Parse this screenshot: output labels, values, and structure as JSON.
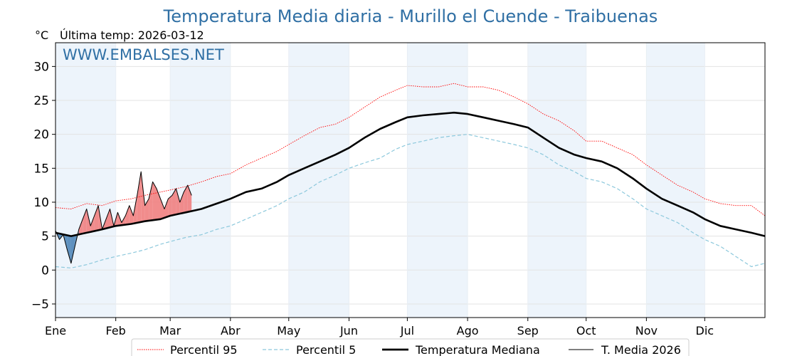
{
  "chart_data": {
    "type": "line",
    "title": "Temperatura Media diaria - Murillo el Cuende - Traibuenas",
    "unit_label": "°C",
    "last_temp_label": "Última temp: 2026-03-12",
    "watermark": "WWW.EMBALSES.NET",
    "ylim": [
      -7,
      33.5
    ],
    "yticks": [
      30,
      25,
      20,
      15,
      10,
      5,
      0,
      -5
    ],
    "ytick_labels": [
      "30",
      "25",
      "20",
      "15",
      "10",
      "5",
      "0",
      "−5"
    ],
    "xlim_days": [
      0,
      365
    ],
    "months": [
      {
        "label": "Ene",
        "start_day": 0
      },
      {
        "label": "Feb",
        "start_day": 31
      },
      {
        "label": "Mar",
        "start_day": 59
      },
      {
        "label": "Abr",
        "start_day": 90
      },
      {
        "label": "May",
        "start_day": 120
      },
      {
        "label": "Jun",
        "start_day": 151
      },
      {
        "label": "Jul",
        "start_day": 181
      },
      {
        "label": "Ago",
        "start_day": 212
      },
      {
        "label": "Sep",
        "start_day": 243
      },
      {
        "label": "Oct",
        "start_day": 273
      },
      {
        "label": "Nov",
        "start_day": 304
      },
      {
        "label": "Dic",
        "start_day": 334
      }
    ],
    "grid": true,
    "legend_position": "bottom",
    "colors": {
      "p95": "#ff0000",
      "p5": "#8cc8dc",
      "median": "#000000",
      "current": "#000000",
      "above_fill": "#f08080",
      "below_fill": "#4f86b8",
      "month_band": "#edf4fb",
      "title": "#2f6fa4"
    },
    "series": [
      {
        "name": "Percentil 95",
        "style": "dotted",
        "x": [
          0,
          8,
          16,
          24,
          31,
          39,
          46,
          54,
          59,
          67,
          75,
          83,
          90,
          98,
          106,
          114,
          120,
          128,
          136,
          144,
          151,
          159,
          167,
          175,
          181,
          189,
          197,
          205,
          212,
          220,
          228,
          236,
          243,
          251,
          259,
          267,
          273,
          281,
          289,
          297,
          304,
          312,
          320,
          328,
          334,
          342,
          350,
          358,
          365
        ],
        "y": [
          9.2,
          9.0,
          9.8,
          9.5,
          10.2,
          10.5,
          11.0,
          11.5,
          11.8,
          12.3,
          13.0,
          13.8,
          14.2,
          15.5,
          16.5,
          17.5,
          18.5,
          19.8,
          21.0,
          21.5,
          22.5,
          24.0,
          25.5,
          26.5,
          27.2,
          27.0,
          27.0,
          27.5,
          27.0,
          27.0,
          26.5,
          25.5,
          24.5,
          23.0,
          22.0,
          20.5,
          19.0,
          19.0,
          18.0,
          17.0,
          15.5,
          14.0,
          12.5,
          11.5,
          10.5,
          9.8,
          9.5,
          9.5,
          8.0
        ]
      },
      {
        "name": "Percentil 5",
        "style": "dashed",
        "x": [
          0,
          8,
          16,
          24,
          31,
          39,
          46,
          54,
          59,
          67,
          75,
          83,
          90,
          98,
          106,
          114,
          120,
          128,
          136,
          144,
          151,
          159,
          167,
          175,
          181,
          189,
          197,
          205,
          212,
          220,
          228,
          236,
          243,
          251,
          259,
          267,
          273,
          281,
          289,
          297,
          304,
          312,
          320,
          328,
          334,
          342,
          350,
          358,
          365
        ],
        "y": [
          0.5,
          0.3,
          0.8,
          1.5,
          2.0,
          2.5,
          3.0,
          3.8,
          4.2,
          4.8,
          5.2,
          6.0,
          6.5,
          7.5,
          8.5,
          9.5,
          10.5,
          11.5,
          13.0,
          14.0,
          15.0,
          15.8,
          16.5,
          17.8,
          18.5,
          19.0,
          19.5,
          19.8,
          20.0,
          19.5,
          19.0,
          18.5,
          18.0,
          17.0,
          15.5,
          14.5,
          13.5,
          13.0,
          12.0,
          10.5,
          9.0,
          8.0,
          7.0,
          5.5,
          4.5,
          3.5,
          2.0,
          0.5,
          1.0
        ]
      },
      {
        "name": "Temperatura Mediana",
        "style": "solid-thick",
        "x": [
          0,
          8,
          16,
          24,
          31,
          39,
          46,
          54,
          59,
          67,
          75,
          83,
          90,
          98,
          106,
          114,
          120,
          128,
          136,
          144,
          151,
          159,
          167,
          175,
          181,
          189,
          197,
          205,
          212,
          220,
          228,
          236,
          243,
          251,
          259,
          267,
          273,
          281,
          289,
          297,
          304,
          312,
          320,
          328,
          334,
          342,
          350,
          358,
          365
        ],
        "y": [
          5.5,
          5.0,
          5.5,
          6.0,
          6.5,
          6.8,
          7.2,
          7.5,
          8.0,
          8.5,
          9.0,
          9.8,
          10.5,
          11.5,
          12.0,
          13.0,
          14.0,
          15.0,
          16.0,
          17.0,
          18.0,
          19.5,
          20.8,
          21.8,
          22.5,
          22.8,
          23.0,
          23.2,
          23.0,
          22.5,
          22.0,
          21.5,
          21.0,
          19.5,
          18.0,
          17.0,
          16.5,
          16.0,
          15.0,
          13.5,
          12.0,
          10.5,
          9.5,
          8.5,
          7.5,
          6.5,
          6.0,
          5.5,
          5.0
        ]
      },
      {
        "name": "T. Media 2026",
        "style": "solid-thin",
        "x": [
          0,
          2,
          4,
          6,
          8,
          10,
          12,
          14,
          16,
          18,
          20,
          22,
          24,
          26,
          28,
          30,
          32,
          34,
          36,
          38,
          40,
          42,
          44,
          46,
          48,
          50,
          52,
          54,
          56,
          58,
          60,
          62,
          64,
          66,
          68,
          70
        ],
        "y": [
          5.8,
          4.5,
          5.2,
          3.0,
          1.0,
          3.5,
          6.0,
          7.5,
          9.0,
          6.5,
          8.0,
          9.5,
          6.0,
          7.5,
          9.0,
          6.5,
          8.5,
          7.0,
          8.0,
          9.5,
          8.0,
          11.0,
          14.5,
          9.5,
          10.5,
          13.0,
          12.0,
          10.5,
          9.0,
          10.5,
          11.0,
          12.0,
          10.0,
          11.5,
          12.5,
          11.0
        ]
      }
    ]
  }
}
